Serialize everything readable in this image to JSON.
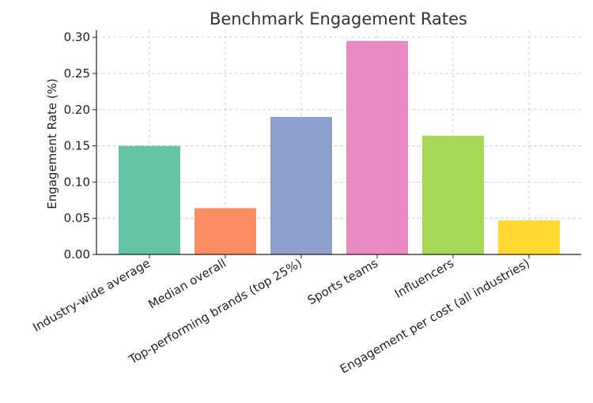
{
  "chart_data": {
    "type": "bar",
    "title": "Benchmark Engagement Rates",
    "xlabel": "",
    "ylabel": "Engagement Rate (%)",
    "ylim": [
      0,
      0.31
    ],
    "yticks": [
      "0.00",
      "0.05",
      "0.10",
      "0.15",
      "0.20",
      "0.25",
      "0.30"
    ],
    "categories": [
      "Industry-wide average",
      "Median overall",
      "Top-performing brands (top 25%)",
      "Sports teams",
      "Influencers",
      "Engagement per cost (all industries)"
    ],
    "values": [
      0.15,
      0.064,
      0.19,
      0.295,
      0.164,
      0.047
    ],
    "colors": [
      "#66c2a5",
      "#fc8d62",
      "#8da0cb",
      "#e78ac3",
      "#a6d854",
      "#ffd92f"
    ],
    "grid": true,
    "legend": "none"
  }
}
